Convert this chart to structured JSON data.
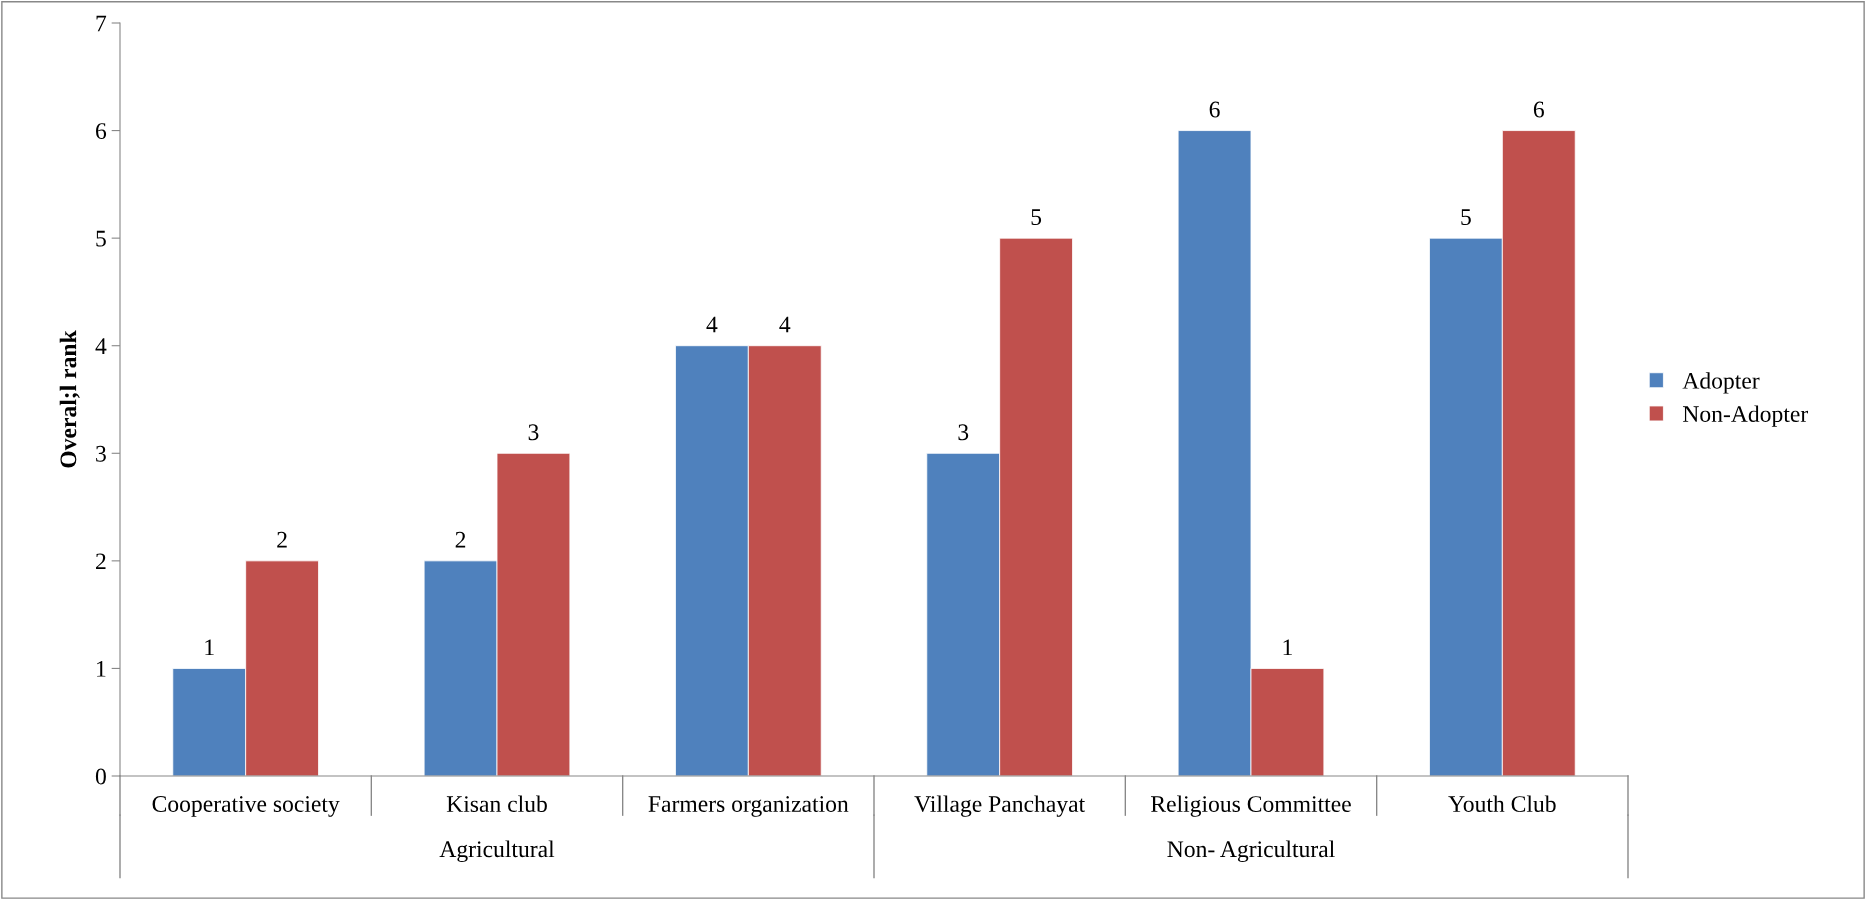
{
  "chart_data": {
    "type": "bar",
    "ylabel": "Overal;l rank",
    "categories": [
      "Cooperative society",
      "Kisan club",
      "Farmers organization",
      "Village Panchayat",
      "Religious Committee",
      "Youth Club"
    ],
    "series": [
      {
        "name": "Adopter",
        "color": "#4f81bd",
        "values": [
          1,
          2,
          4,
          3,
          6,
          5
        ]
      },
      {
        "name": "Non-Adopter",
        "color": "#c0504d",
        "values": [
          2,
          3,
          4,
          5,
          1,
          6
        ]
      }
    ],
    "annotations": [
      "Agricultural",
      "Non- Agricultural"
    ],
    "ylim": [
      0,
      7
    ],
    "yticks": [
      0,
      1,
      2,
      3,
      4,
      5,
      6,
      7
    ],
    "grid": false,
    "legend": "right",
    "data_labels": true
  }
}
